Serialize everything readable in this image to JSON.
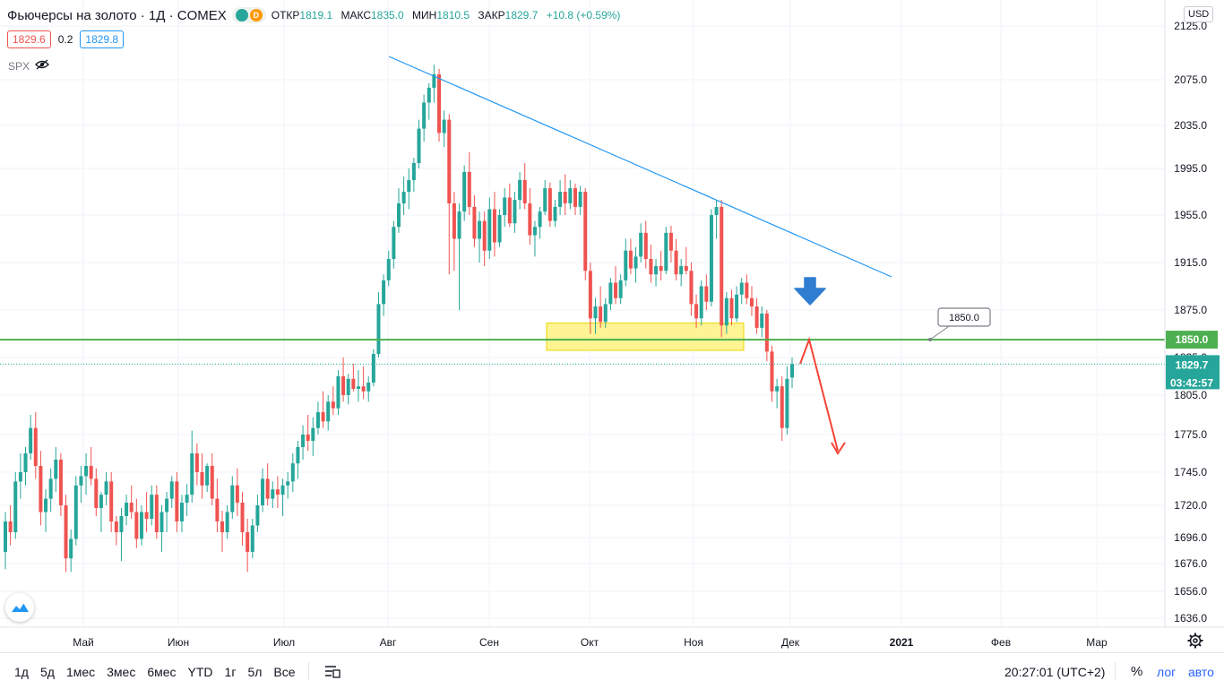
{
  "header": {
    "symbol_title": "Фьючерсы на золото · 1Д · COMEX",
    "badge_green": "",
    "badge_orange": "D",
    "ohlc": [
      {
        "label": "ОТКР",
        "value": "1819.1"
      },
      {
        "label": "МАКС",
        "value": "1835.0"
      },
      {
        "label": "МИН",
        "value": "1810.5"
      },
      {
        "label": "ЗАКР",
        "value": "1829.7"
      }
    ],
    "change": "+10.8 (+0.59%)",
    "sell_price": "1829.6",
    "spread": "0.2",
    "buy_price": "1829.8",
    "compare_symbol": "SPX",
    "currency": "USD"
  },
  "bottom_bar": {
    "ranges": [
      "1д",
      "5д",
      "1мес",
      "3мес",
      "6мес",
      "YTD",
      "1г",
      "5л",
      "Все"
    ],
    "clock": "20:27:01 (UTC+2)",
    "percent_label": "%",
    "log_label": "лог",
    "auto_label": "авто"
  },
  "colors": {
    "up": "#26a69a",
    "down": "#ef5350",
    "level_line": "#4caf50",
    "trendline": "#2196f3",
    "zone_fill": "#ffeb3b",
    "arrow_red": "#f44336",
    "arrow_blue": "#2e7dd1"
  },
  "chart_data": {
    "type": "candlestick",
    "instrument": "Фьючерсы на золото · 1Д · COMEX",
    "y_axis_ticks": [
      2125.0,
      2075.0,
      2035.0,
      1995.0,
      1955.0,
      1915.0,
      1875.0,
      1835.0,
      1805.0,
      1775.0,
      1745.0,
      1720.0,
      1696.0,
      1676.0,
      1656.0,
      1636.0
    ],
    "x_axis_ticks": [
      "Май",
      "Июн",
      "Июл",
      "Авг",
      "Сен",
      "Окт",
      "Ноя",
      "Дек",
      "2021",
      "Фев",
      "Мар"
    ],
    "price_labels": {
      "level": "1850.0",
      "last": "1829.7",
      "countdown": "03:42:57"
    },
    "annotations": {
      "level_callout": "1850.0"
    },
    "series": [
      {
        "values": [
          [
            1685,
            1715,
            1672,
            1708
          ],
          [
            1708,
            1720,
            1690,
            1700
          ],
          [
            1700,
            1745,
            1695,
            1738
          ],
          [
            1738,
            1760,
            1725,
            1745
          ],
          [
            1745,
            1765,
            1735,
            1760
          ],
          [
            1760,
            1790,
            1755,
            1780
          ],
          [
            1780,
            1792,
            1740,
            1750
          ],
          [
            1750,
            1762,
            1705,
            1715
          ],
          [
            1715,
            1732,
            1700,
            1725
          ],
          [
            1725,
            1748,
            1715,
            1740
          ],
          [
            1740,
            1765,
            1730,
            1755
          ],
          [
            1755,
            1760,
            1712,
            1720
          ],
          [
            1720,
            1728,
            1670,
            1680
          ],
          [
            1680,
            1702,
            1670,
            1695
          ],
          [
            1695,
            1742,
            1690,
            1735
          ],
          [
            1735,
            1750,
            1722,
            1742
          ],
          [
            1742,
            1760,
            1728,
            1750
          ],
          [
            1750,
            1765,
            1735,
            1740
          ],
          [
            1740,
            1748,
            1712,
            1718
          ],
          [
            1718,
            1730,
            1700,
            1728
          ],
          [
            1728,
            1745,
            1720,
            1738
          ],
          [
            1738,
            1745,
            1700,
            1708
          ],
          [
            1708,
            1712,
            1690,
            1700
          ],
          [
            1700,
            1718,
            1678,
            1712
          ],
          [
            1712,
            1728,
            1705,
            1722
          ],
          [
            1722,
            1735,
            1710,
            1715
          ],
          [
            1715,
            1725,
            1688,
            1695
          ],
          [
            1695,
            1720,
            1690,
            1715
          ],
          [
            1715,
            1730,
            1700,
            1710
          ],
          [
            1710,
            1735,
            1705,
            1728
          ],
          [
            1728,
            1735,
            1695,
            1700
          ],
          [
            1700,
            1720,
            1685,
            1715
          ],
          [
            1715,
            1730,
            1700,
            1725
          ],
          [
            1725,
            1742,
            1718,
            1738
          ],
          [
            1738,
            1745,
            1700,
            1708
          ],
          [
            1708,
            1728,
            1700,
            1722
          ],
          [
            1722,
            1736,
            1712,
            1728
          ],
          [
            1728,
            1778,
            1722,
            1760
          ],
          [
            1760,
            1768,
            1735,
            1745
          ],
          [
            1745,
            1760,
            1725,
            1735
          ],
          [
            1735,
            1752,
            1730,
            1750
          ],
          [
            1750,
            1760,
            1720,
            1725
          ],
          [
            1725,
            1740,
            1700,
            1708
          ],
          [
            1708,
            1716,
            1685,
            1700
          ],
          [
            1700,
            1720,
            1695,
            1715
          ],
          [
            1715,
            1742,
            1710,
            1735
          ],
          [
            1735,
            1748,
            1712,
            1722
          ],
          [
            1722,
            1730,
            1690,
            1700
          ],
          [
            1700,
            1710,
            1670,
            1685
          ],
          [
            1685,
            1710,
            1680,
            1705
          ],
          [
            1705,
            1728,
            1700,
            1720
          ],
          [
            1720,
            1748,
            1715,
            1740
          ],
          [
            1740,
            1752,
            1720,
            1725
          ],
          [
            1725,
            1738,
            1718,
            1732
          ],
          [
            1732,
            1742,
            1718,
            1728
          ],
          [
            1728,
            1740,
            1712,
            1735
          ],
          [
            1735,
            1745,
            1725,
            1738
          ],
          [
            1738,
            1760,
            1730,
            1752
          ],
          [
            1752,
            1770,
            1740,
            1765
          ],
          [
            1765,
            1782,
            1755,
            1775
          ],
          [
            1775,
            1790,
            1762,
            1770
          ],
          [
            1770,
            1788,
            1758,
            1780
          ],
          [
            1780,
            1800,
            1775,
            1792
          ],
          [
            1792,
            1808,
            1780,
            1785
          ],
          [
            1785,
            1805,
            1778,
            1800
          ],
          [
            1800,
            1812,
            1790,
            1795
          ],
          [
            1795,
            1825,
            1790,
            1820
          ],
          [
            1820,
            1835,
            1800,
            1805
          ],
          [
            1805,
            1822,
            1798,
            1818
          ],
          [
            1818,
            1830,
            1808,
            1810
          ],
          [
            1810,
            1825,
            1800,
            1812
          ],
          [
            1812,
            1828,
            1802,
            1808
          ],
          [
            1808,
            1820,
            1800,
            1815
          ],
          [
            1815,
            1842,
            1812,
            1838
          ],
          [
            1838,
            1890,
            1835,
            1880
          ],
          [
            1880,
            1905,
            1870,
            1900
          ],
          [
            1900,
            1925,
            1895,
            1918
          ],
          [
            1918,
            1950,
            1910,
            1945
          ],
          [
            1945,
            1978,
            1940,
            1965
          ],
          [
            1965,
            1988,
            1955,
            1975
          ],
          [
            1975,
            1995,
            1960,
            1985
          ],
          [
            1985,
            2005,
            1975,
            2000
          ],
          [
            2000,
            2040,
            1995,
            2032
          ],
          [
            2032,
            2062,
            2020,
            2055
          ],
          [
            2055,
            2072,
            2040,
            2068
          ],
          [
            2068,
            2089,
            2055,
            2080
          ],
          [
            2080,
            2085,
            2020,
            2028
          ],
          [
            2028,
            2048,
            2015,
            2040
          ],
          [
            2040,
            2045,
            1905,
            1965
          ],
          [
            1965,
            1975,
            1908,
            1935
          ],
          [
            1935,
            1965,
            1875,
            1958
          ],
          [
            1958,
            1998,
            1950,
            1992
          ],
          [
            1992,
            2010,
            1955,
            1962
          ],
          [
            1962,
            1972,
            1928,
            1935
          ],
          [
            1935,
            1958,
            1915,
            1950
          ],
          [
            1950,
            1958,
            1912,
            1925
          ],
          [
            1925,
            1970,
            1918,
            1960
          ],
          [
            1960,
            1975,
            1920,
            1932
          ],
          [
            1932,
            1960,
            1928,
            1955
          ],
          [
            1955,
            1978,
            1945,
            1970
          ],
          [
            1970,
            1982,
            1945,
            1948
          ],
          [
            1948,
            1975,
            1940,
            1968
          ],
          [
            1968,
            1992,
            1960,
            1985
          ],
          [
            1985,
            2000,
            1960,
            1965
          ],
          [
            1965,
            1978,
            1930,
            1938
          ],
          [
            1938,
            1950,
            1920,
            1945
          ],
          [
            1945,
            1962,
            1935,
            1958
          ],
          [
            1958,
            1985,
            1955,
            1978
          ],
          [
            1978,
            1983,
            1945,
            1950
          ],
          [
            1950,
            1968,
            1945,
            1962
          ],
          [
            1962,
            1985,
            1955,
            1975
          ],
          [
            1975,
            1990,
            1955,
            1965
          ],
          [
            1965,
            1985,
            1960,
            1978
          ],
          [
            1978,
            1982,
            1955,
            1962
          ],
          [
            1962,
            1980,
            1955,
            1975
          ],
          [
            1975,
            1978,
            1900,
            1908
          ],
          [
            1908,
            1915,
            1855,
            1868
          ],
          [
            1868,
            1885,
            1855,
            1878
          ],
          [
            1878,
            1895,
            1860,
            1865
          ],
          [
            1865,
            1885,
            1860,
            1880
          ],
          [
            1880,
            1902,
            1875,
            1898
          ],
          [
            1898,
            1912,
            1880,
            1885
          ],
          [
            1885,
            1905,
            1880,
            1900
          ],
          [
            1900,
            1935,
            1895,
            1925
          ],
          [
            1925,
            1935,
            1905,
            1910
          ],
          [
            1910,
            1928,
            1898,
            1920
          ],
          [
            1920,
            1948,
            1915,
            1940
          ],
          [
            1940,
            1950,
            1910,
            1918
          ],
          [
            1918,
            1930,
            1898,
            1905
          ],
          [
            1905,
            1918,
            1895,
            1912
          ],
          [
            1912,
            1925,
            1900,
            1908
          ],
          [
            1908,
            1945,
            1905,
            1940
          ],
          [
            1940,
            1946,
            1915,
            1925
          ],
          [
            1925,
            1935,
            1900,
            1905
          ],
          [
            1905,
            1918,
            1895,
            1912
          ],
          [
            1912,
            1928,
            1905,
            1908
          ],
          [
            1908,
            1915,
            1870,
            1880
          ],
          [
            1880,
            1888,
            1860,
            1868
          ],
          [
            1868,
            1900,
            1862,
            1895
          ],
          [
            1895,
            1905,
            1875,
            1882
          ],
          [
            1882,
            1960,
            1878,
            1955
          ],
          [
            1955,
            1968,
            1935,
            1962
          ],
          [
            1962,
            1968,
            1852,
            1862
          ],
          [
            1862,
            1890,
            1855,
            1885
          ],
          [
            1885,
            1892,
            1862,
            1868
          ],
          [
            1868,
            1895,
            1865,
            1888
          ],
          [
            1888,
            1902,
            1880,
            1898
          ],
          [
            1898,
            1905,
            1880,
            1885
          ],
          [
            1885,
            1895,
            1870,
            1878
          ],
          [
            1878,
            1885,
            1855,
            1860
          ],
          [
            1860,
            1878,
            1852,
            1872
          ],
          [
            1872,
            1875,
            1832,
            1840
          ],
          [
            1840,
            1845,
            1800,
            1808
          ],
          [
            1808,
            1818,
            1795,
            1812
          ],
          [
            1812,
            1820,
            1770,
            1780
          ],
          [
            1780,
            1828,
            1775,
            1818
          ],
          [
            1819.1,
            1835.0,
            1810.5,
            1829.7
          ]
        ]
      }
    ]
  }
}
